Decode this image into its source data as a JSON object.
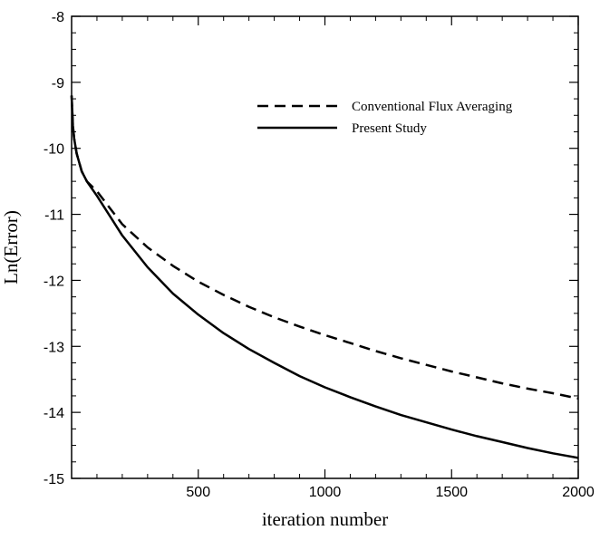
{
  "chart_data": {
    "type": "line",
    "title": "",
    "xlabel": "iteration number",
    "ylabel": "Ln(Error)",
    "xlim": [
      0,
      2000
    ],
    "ylim": [
      -15,
      -8
    ],
    "x_ticks": [
      500,
      1000,
      1500,
      2000
    ],
    "y_ticks": [
      -15,
      -14,
      -13,
      -12,
      -11,
      -10,
      -9,
      -8
    ],
    "grid": false,
    "legend_position": "upper-right",
    "series": [
      {
        "name": "Conventional Flux Averaging",
        "style": "dashed",
        "color": "#000000",
        "x": [
          0,
          5,
          10,
          20,
          40,
          60,
          100,
          200,
          300,
          400,
          500,
          600,
          700,
          800,
          900,
          1000,
          1100,
          1200,
          1300,
          1400,
          1500,
          1600,
          1700,
          1800,
          1900,
          2000
        ],
        "y": [
          -9.2,
          -9.65,
          -9.85,
          -10.08,
          -10.35,
          -10.5,
          -10.65,
          -11.15,
          -11.5,
          -11.78,
          -12.02,
          -12.22,
          -12.4,
          -12.56,
          -12.7,
          -12.83,
          -12.95,
          -13.07,
          -13.18,
          -13.28,
          -13.38,
          -13.47,
          -13.56,
          -13.64,
          -13.71,
          -13.79
        ]
      },
      {
        "name": "Present Study",
        "style": "solid",
        "color": "#000000",
        "x": [
          0,
          5,
          10,
          20,
          40,
          60,
          100,
          200,
          300,
          400,
          500,
          600,
          700,
          800,
          900,
          1000,
          1100,
          1200,
          1300,
          1400,
          1500,
          1600,
          1700,
          1800,
          1900,
          2000
        ],
        "y": [
          -9.2,
          -9.65,
          -9.85,
          -10.08,
          -10.35,
          -10.5,
          -10.72,
          -11.32,
          -11.8,
          -12.2,
          -12.52,
          -12.8,
          -13.04,
          -13.25,
          -13.45,
          -13.62,
          -13.77,
          -13.91,
          -14.04,
          -14.15,
          -14.26,
          -14.36,
          -14.45,
          -14.54,
          -14.62,
          -14.69
        ]
      }
    ]
  }
}
